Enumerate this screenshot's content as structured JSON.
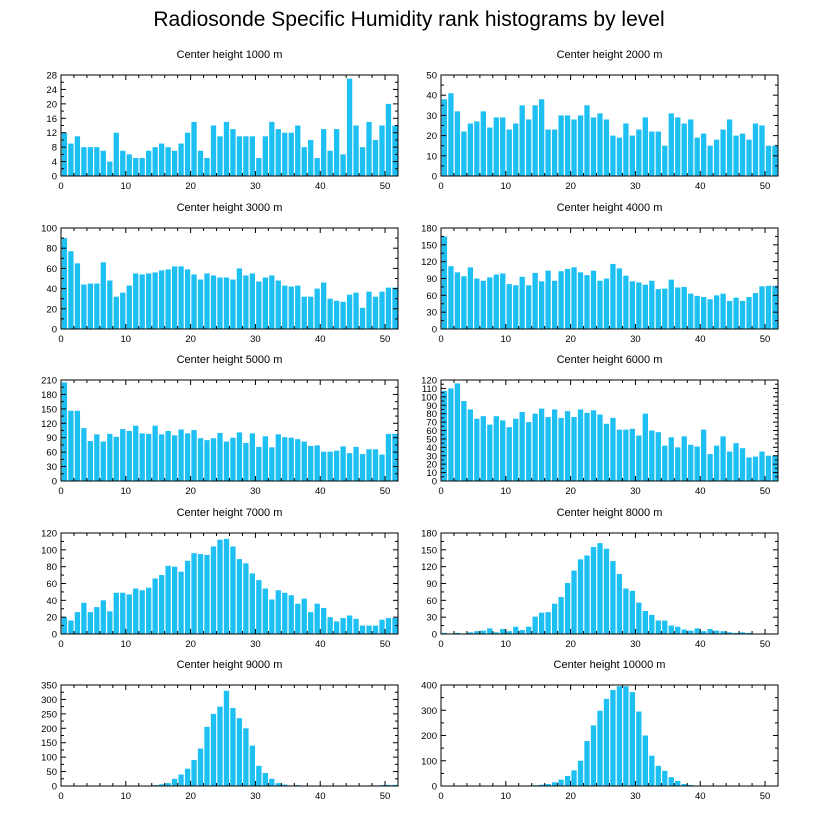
{
  "title": "Radiosonde Specific Humidity rank histograms by level",
  "bar_color": "#1ec0f4",
  "chart_data": [
    {
      "type": "bar",
      "title": "Center height 1000 m",
      "x": "rank 0-51",
      "xticks": [
        0,
        10,
        20,
        30,
        40,
        50
      ],
      "yticks": [
        0,
        4,
        8,
        12,
        16,
        20,
        24,
        28
      ],
      "ylim": [
        0,
        28
      ],
      "values": [
        12,
        9,
        11,
        8,
        8,
        8,
        7,
        4,
        12,
        7,
        6,
        5,
        5,
        7,
        8,
        9,
        8,
        7,
        9,
        12,
        15,
        7,
        5,
        14,
        11,
        15,
        13,
        11,
        11,
        11,
        5,
        11,
        15,
        13,
        12,
        12,
        14,
        8,
        10,
        5,
        13,
        7,
        13,
        6,
        27,
        14,
        8,
        15,
        10,
        14,
        20,
        14
      ]
    },
    {
      "type": "bar",
      "title": "Center height 2000 m",
      "x": "rank 0-51",
      "xticks": [
        0,
        10,
        20,
        30,
        40,
        50
      ],
      "yticks": [
        0,
        10,
        20,
        30,
        40,
        50
      ],
      "ylim": [
        0,
        50
      ],
      "values": [
        38,
        41,
        32,
        22,
        26,
        27,
        32,
        24,
        29,
        29,
        23,
        26,
        35,
        28,
        35,
        38,
        23,
        23,
        30,
        30,
        28,
        30,
        35,
        29,
        31,
        28,
        20,
        19,
        26,
        20,
        23,
        29,
        22,
        22,
        15,
        31,
        29,
        26,
        28,
        19,
        21,
        15,
        18,
        23,
        28,
        20,
        21,
        18,
        26,
        25,
        15,
        15
      ]
    },
    {
      "type": "bar",
      "title": "Center height 3000 m",
      "x": "rank 0-51",
      "xticks": [
        0,
        10,
        20,
        30,
        40,
        50
      ],
      "yticks": [
        0,
        20,
        40,
        60,
        80,
        100
      ],
      "ylim": [
        0,
        100
      ],
      "values": [
        90,
        77,
        65,
        44,
        45,
        45,
        66,
        48,
        32,
        36,
        43,
        55,
        54,
        55,
        56,
        58,
        59,
        62,
        62,
        59,
        54,
        49,
        55,
        53,
        51,
        51,
        49,
        60,
        53,
        55,
        47,
        51,
        53,
        48,
        43,
        42,
        43,
        32,
        32,
        40,
        46,
        30,
        28,
        27,
        34,
        36,
        21,
        37,
        32,
        37,
        41,
        41
      ]
    },
    {
      "type": "bar",
      "title": "Center height 4000 m",
      "x": "rank 0-51",
      "xticks": [
        0,
        10,
        20,
        30,
        40,
        50
      ],
      "yticks": [
        0,
        30,
        60,
        90,
        120,
        150,
        180
      ],
      "ylim": [
        0,
        180
      ],
      "values": [
        165,
        112,
        101,
        94,
        110,
        90,
        86,
        92,
        97,
        99,
        80,
        78,
        93,
        78,
        100,
        85,
        104,
        86,
        103,
        107,
        110,
        101,
        96,
        104,
        86,
        90,
        116,
        108,
        95,
        85,
        83,
        79,
        86,
        71,
        72,
        88,
        74,
        75,
        63,
        59,
        57,
        53,
        60,
        63,
        50,
        56,
        50,
        57,
        64,
        76,
        77,
        77
      ]
    },
    {
      "type": "bar",
      "title": "Center height 5000 m",
      "x": "rank 0-51",
      "xticks": [
        0,
        10,
        20,
        30,
        40,
        50
      ],
      "yticks": [
        0,
        30,
        60,
        90,
        120,
        150,
        180,
        210
      ],
      "ylim": [
        0,
        210
      ],
      "values": [
        205,
        146,
        146,
        110,
        83,
        97,
        82,
        98,
        92,
        108,
        104,
        115,
        99,
        98,
        115,
        97,
        104,
        95,
        107,
        99,
        106,
        89,
        85,
        89,
        100,
        82,
        90,
        101,
        79,
        99,
        71,
        93,
        70,
        97,
        91,
        90,
        87,
        82,
        73,
        74,
        61,
        61,
        63,
        72,
        58,
        71,
        56,
        66,
        66,
        55,
        98,
        98
      ]
    },
    {
      "type": "bar",
      "title": "Center height 6000 m",
      "x": "rank 0-51",
      "xticks": [
        0,
        10,
        20,
        30,
        40,
        50
      ],
      "yticks": [
        0,
        10,
        20,
        30,
        40,
        50,
        60,
        70,
        80,
        90,
        100,
        110,
        120
      ],
      "ylim": [
        0,
        120
      ],
      "values": [
        107,
        110,
        116,
        95,
        85,
        74,
        77,
        67,
        77,
        72,
        64,
        74,
        82,
        70,
        80,
        86,
        76,
        85,
        75,
        83,
        76,
        85,
        81,
        84,
        79,
        68,
        75,
        61,
        61,
        62,
        54,
        80,
        60,
        58,
        42,
        52,
        40,
        53,
        43,
        41,
        61,
        32,
        42,
        53,
        35,
        45,
        39,
        28,
        29,
        35,
        30,
        30
      ]
    },
    {
      "type": "bar",
      "title": "Center height 7000 m",
      "x": "rank 0-51",
      "xticks": [
        0,
        10,
        20,
        30,
        40,
        50
      ],
      "yticks": [
        0,
        20,
        40,
        60,
        80,
        100,
        120
      ],
      "ylim": [
        0,
        120
      ],
      "values": [
        20,
        16,
        26,
        37,
        26,
        32,
        40,
        27,
        49,
        49,
        47,
        54,
        52,
        55,
        66,
        70,
        81,
        80,
        74,
        87,
        96,
        95,
        94,
        104,
        112,
        113,
        104,
        89,
        84,
        72,
        64,
        54,
        41,
        52,
        49,
        46,
        36,
        42,
        26,
        36,
        31,
        20,
        15,
        19,
        22,
        18,
        10,
        10,
        10,
        17,
        19,
        19
      ]
    },
    {
      "type": "bar",
      "title": "Center height 8000 m",
      "x": "rank 0-51",
      "xticks": [
        0,
        10,
        20,
        30,
        40,
        50
      ],
      "yticks": [
        0,
        30,
        60,
        90,
        120,
        150,
        180
      ],
      "ylim": [
        0,
        180
      ],
      "values": [
        2,
        1,
        2,
        1,
        3,
        5,
        6,
        10,
        3,
        9,
        5,
        13,
        7,
        13,
        31,
        38,
        39,
        54,
        66,
        91,
        113,
        133,
        140,
        155,
        162,
        152,
        130,
        107,
        81,
        77,
        56,
        41,
        34,
        24,
        24,
        15,
        13,
        8,
        6,
        10,
        5,
        9,
        6,
        5,
        3,
        2,
        3,
        2,
        1,
        1,
        1,
        1
      ]
    },
    {
      "type": "bar",
      "title": "Center height 9000 m",
      "x": "rank 0-51",
      "xticks": [
        0,
        10,
        20,
        30,
        40,
        50
      ],
      "yticks": [
        0,
        50,
        100,
        150,
        200,
        250,
        300,
        350
      ],
      "ylim": [
        0,
        350
      ],
      "values": [
        1,
        1,
        0,
        0,
        1,
        1,
        0,
        1,
        1,
        1,
        0,
        0,
        1,
        0,
        3,
        6,
        10,
        25,
        40,
        60,
        90,
        130,
        205,
        250,
        275,
        330,
        270,
        235,
        200,
        140,
        70,
        45,
        25,
        10,
        5,
        2,
        3,
        1,
        2,
        1,
        0,
        1,
        2,
        1,
        1,
        1,
        1,
        2,
        2,
        3,
        4,
        4
      ]
    },
    {
      "type": "bar",
      "title": "Center height 10000 m",
      "x": "rank 0-51",
      "xticks": [
        0,
        10,
        20,
        30,
        40,
        50
      ],
      "yticks": [
        0,
        100,
        200,
        300,
        400
      ],
      "ylim": [
        0,
        400
      ],
      "values": [
        1,
        0,
        0,
        1,
        0,
        0,
        0,
        1,
        0,
        0,
        1,
        0,
        1,
        2,
        3,
        5,
        8,
        15,
        25,
        40,
        62,
        100,
        178,
        240,
        298,
        345,
        380,
        395,
        395,
        372,
        295,
        200,
        120,
        80,
        60,
        35,
        20,
        8,
        4,
        2,
        1,
        1,
        1,
        1,
        0,
        0,
        1,
        0,
        0,
        0,
        0,
        0
      ]
    }
  ]
}
